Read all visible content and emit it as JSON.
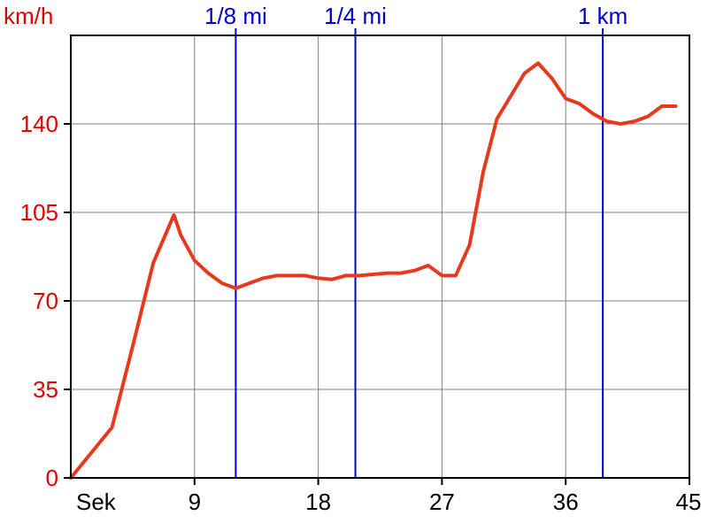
{
  "chart_data": {
    "type": "line",
    "ylabel": "km/h",
    "xlabel": "Sek",
    "xlim": [
      0,
      45
    ],
    "ylim": [
      0,
      175
    ],
    "xticks": [
      9,
      18,
      27,
      36,
      45
    ],
    "yticks": [
      0,
      35,
      70,
      105,
      140
    ],
    "grid": true,
    "series": [
      {
        "color": "#e53a1e",
        "x": [
          0,
          3,
          4.5,
          6,
          7.5,
          8,
          9,
          10,
          11,
          12,
          13,
          14,
          15,
          16,
          17,
          18,
          19,
          20,
          21,
          22,
          23,
          24,
          25,
          26,
          27,
          28,
          29,
          30,
          31,
          32,
          33,
          34,
          35,
          36,
          37,
          38,
          39,
          40,
          41,
          42,
          43,
          44
        ],
        "y": [
          0,
          20,
          52,
          85,
          104,
          96,
          86,
          81,
          77,
          75,
          77,
          79,
          80,
          80,
          80,
          79,
          78.5,
          80,
          80,
          80.5,
          81,
          81,
          82,
          84,
          80,
          80,
          92,
          121,
          142,
          151,
          160,
          164,
          158,
          150,
          148,
          144,
          141,
          140,
          141,
          143,
          147,
          147
        ]
      }
    ],
    "markers": [
      {
        "label": "1/8 mi",
        "x": 12
      },
      {
        "label": "1/4 mi",
        "x": 20.7
      },
      {
        "label": "1 km",
        "x": 38.7
      }
    ],
    "colors": {
      "line": "#e53a1e",
      "marker": "#0000cc",
      "ylabel": "#e00000",
      "grid": "#808080",
      "axis": "#000000"
    }
  }
}
